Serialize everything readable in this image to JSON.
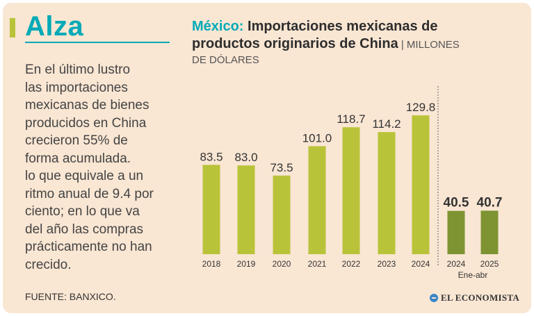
{
  "headline": "Alza",
  "body_lines": [
    "En el último lustro",
    "las importaciones",
    "mexicanas de bienes",
    "producidos en China",
    "crecieron 55% de",
    "forma acumulada.",
    "lo que equivale a un",
    "ritmo anual de 9.4 por",
    "ciento; en lo que va",
    "del año las compras",
    "prácticamente no han",
    "crecido."
  ],
  "source": "FUENTE: BANXICO.",
  "logo_text": "EL ECONOMISTA",
  "title": {
    "country": "México:",
    "line1_rest": " Importaciones mexicanas de",
    "line2": "productos originarios de China",
    "unit_part1": " | MILLONES",
    "unit_part2": "DE DÓLARES"
  },
  "colors": {
    "accent": "#00aab7",
    "bar_annual": "#b9c33a",
    "bar_partial": "#7e9432",
    "background": "#f9e6d3"
  },
  "chart_data": {
    "type": "bar",
    "title": "México: Importaciones mexicanas de productos originarios de China",
    "ylabel": "MILLONES DE DÓLARES",
    "categories": [
      "2018",
      "2019",
      "2020",
      "2021",
      "2022",
      "2023",
      "2024",
      "2024",
      "2025"
    ],
    "values": [
      83.5,
      83.0,
      73.5,
      101.0,
      118.7,
      114.2,
      129.8,
      40.5,
      40.7
    ],
    "value_labels": [
      "83.5",
      "83.0",
      "73.5",
      "101.0",
      "118.7",
      "114.2",
      "129.8",
      "40.5",
      "40.7"
    ],
    "group": [
      "annual",
      "annual",
      "annual",
      "annual",
      "annual",
      "annual",
      "annual",
      "partial",
      "partial"
    ],
    "partial_period_label": "Ene-abr",
    "ylim": [
      0,
      140
    ],
    "grid": false,
    "legend": "none"
  }
}
